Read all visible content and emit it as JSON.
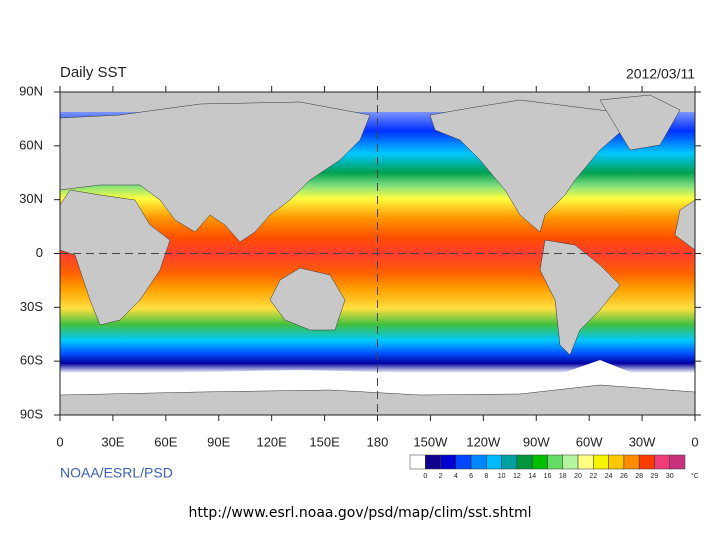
{
  "header": {
    "title": "Daily SST",
    "date": "2012/03/11"
  },
  "map": {
    "lat_ticks": [
      {
        "value": 90,
        "label": "90N"
      },
      {
        "value": 60,
        "label": "60N"
      },
      {
        "value": 30,
        "label": "30N"
      },
      0,
      {
        "value": -30,
        "label": "30S"
      },
      {
        "value": -60,
        "label": "60S"
      },
      {
        "value": -90,
        "label": "90S"
      }
    ],
    "lon_ticks": [
      0,
      {
        "value": 30,
        "label": "30E"
      },
      {
        "value": 60,
        "label": "60E"
      },
      {
        "value": 90,
        "label": "90E"
      },
      {
        "value": 120,
        "label": "120E"
      },
      {
        "value": 150,
        "label": "150E"
      },
      180,
      {
        "value": 210,
        "label": "150W"
      },
      {
        "value": 240,
        "label": "120W"
      },
      {
        "value": 270,
        "label": "90W"
      },
      {
        "value": 300,
        "label": "60W"
      },
      {
        "value": 330,
        "label": "30W"
      },
      {
        "value": 360,
        "label": "0"
      }
    ]
  },
  "legend": {
    "boundaries": [
      0,
      2,
      4,
      6,
      8,
      10,
      12,
      14,
      16,
      18,
      20,
      22,
      24,
      26,
      28,
      29,
      30
    ],
    "colors": [
      "#ffffff",
      "#10008c",
      "#0000d2",
      "#0046ff",
      "#0087ff",
      "#00b9ff",
      "#00a0a0",
      "#00963c",
      "#00be00",
      "#64dc64",
      "#b4f5a0",
      "#ffff80",
      "#f5f500",
      "#ffc800",
      "#ff8c00",
      "#ff3c00",
      "#f03c78",
      "#c8327d"
    ],
    "unit": "°C"
  },
  "credit": "NOAA/ESRL/PSD",
  "footer": {
    "url": "http://www.esrl.noaa.gov/psd/map/clim/sst.shtml"
  }
}
